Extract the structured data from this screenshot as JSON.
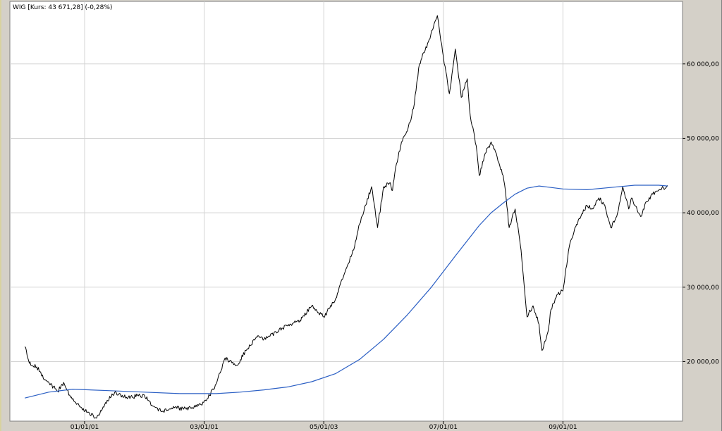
{
  "chart_data": {
    "type": "line",
    "title": "WIG [Kurs: 43 671,28] (-0,28%)",
    "xlabel": "",
    "ylabel": "",
    "x_tick_labels": [
      "01/01/01",
      "03/01/01",
      "05/01/03",
      "07/01/01",
      "09/01/01"
    ],
    "x_tick_values": [
      2001.0,
      2003.0,
      2005.0,
      2007.0,
      2009.0
    ],
    "xlim": [
      1999.75,
      2011.0
    ],
    "y_tick_labels": [
      "20 000,00",
      "30 000,00",
      "40 000,00",
      "50 000,00",
      "60 000,00"
    ],
    "y_tick_values": [
      20000,
      30000,
      40000,
      50000,
      60000
    ],
    "ylim": [
      12000,
      68400
    ],
    "grid": true,
    "colors": {
      "price": "#000000",
      "moving_average": "#2b5fc4",
      "plot_background": "#ffffff",
      "grid": "#d3d3d3",
      "frame": "#d4d0c8"
    },
    "series": [
      {
        "style": "price",
        "x": [
          2000.0,
          2000.05,
          2000.1,
          2000.2,
          2000.35,
          2000.55,
          2000.65,
          2000.75,
          2000.85,
          2000.95,
          2001.05,
          2001.2,
          2001.35,
          2001.5,
          2001.7,
          2001.9,
          2002.0,
          2002.15,
          2002.3,
          2002.5,
          2002.7,
          2002.85,
          2002.95,
          2003.05,
          2003.2,
          2003.35,
          2003.55,
          2003.7,
          2003.9,
          2004.0,
          2004.1,
          2004.2,
          2004.3,
          2004.45,
          2004.6,
          2004.8,
          2005.0,
          2005.2,
          2005.3,
          2005.4,
          2005.5,
          2005.6,
          2005.7,
          2005.8,
          2005.9,
          2006.0,
          2006.1,
          2006.15,
          2006.2,
          2006.3,
          2006.4,
          2006.5,
          2006.6,
          2006.75,
          2006.9,
          2007.0,
          2007.1,
          2007.2,
          2007.3,
          2007.4,
          2007.45,
          2007.55,
          2007.6,
          2007.7,
          2007.8,
          2007.9,
          2008.0,
          2008.05,
          2008.1,
          2008.2,
          2008.3,
          2008.4,
          2008.5,
          2008.6,
          2008.65,
          2008.75,
          2008.8,
          2008.9,
          2009.0,
          2009.05,
          2009.12,
          2009.2,
          2009.3,
          2009.4,
          2009.5,
          2009.6,
          2009.7,
          2009.8,
          2009.9,
          2010.0,
          2010.1,
          2010.15,
          2010.2,
          2010.3,
          2010.4,
          2010.5,
          2010.6,
          2010.65,
          2010.75
        ],
        "y": [
          22000,
          20500,
          19500,
          19300,
          17500,
          16000,
          17200,
          15500,
          14500,
          13800,
          13200,
          12400,
          14500,
          15800,
          15200,
          15400,
          15500,
          14000,
          13300,
          13800,
          13600,
          13900,
          14200,
          15000,
          17000,
          20500,
          19500,
          21500,
          23500,
          23000,
          23400,
          24000,
          24500,
          25000,
          25500,
          27500,
          26000,
          28500,
          31000,
          33000,
          35000,
          38500,
          41000,
          43500,
          38000,
          43500,
          44000,
          43000,
          46000,
          49500,
          51000,
          54000,
          60000,
          63000,
          66500,
          61000,
          56000,
          62000,
          55500,
          58000,
          53000,
          49000,
          45000,
          48000,
          49500,
          47500,
          45000,
          42000,
          38000,
          40500,
          35000,
          26000,
          27500,
          25000,
          21500,
          24000,
          27000,
          29000,
          29500,
          32500,
          36000,
          38000,
          39500,
          41000,
          40500,
          42000,
          41000,
          38000,
          39500,
          43500,
          40500,
          42000,
          41000,
          39500,
          41500,
          42500,
          43000,
          43200,
          43671
        ]
      },
      {
        "style": "moving_average",
        "x": [
          2000.0,
          2000.4,
          2000.8,
          2001.4,
          2002.0,
          2002.6,
          2003.2,
          2003.6,
          2004.0,
          2004.4,
          2004.8,
          2005.2,
          2005.6,
          2006.0,
          2006.4,
          2006.8,
          2007.2,
          2007.6,
          2007.8,
          2008.0,
          2008.2,
          2008.4,
          2008.6,
          2008.8,
          2009.0,
          2009.4,
          2009.8,
          2010.2,
          2010.6,
          2010.75
        ],
        "y": [
          15100,
          15900,
          16300,
          16100,
          15900,
          15700,
          15700,
          15900,
          16200,
          16600,
          17300,
          18400,
          20300,
          23000,
          26300,
          30000,
          34200,
          38300,
          40000,
          41300,
          42500,
          43300,
          43600,
          43400,
          43200,
          43100,
          43400,
          43700,
          43700,
          43600
        ]
      }
    ]
  }
}
